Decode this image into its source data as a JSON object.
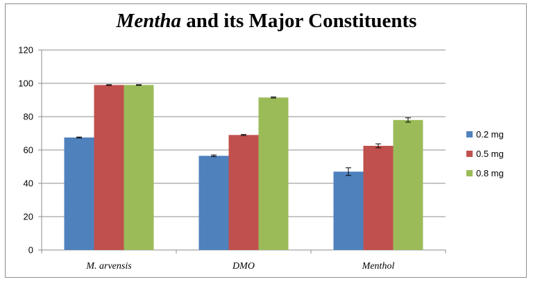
{
  "chart_data": {
    "type": "bar",
    "title_italic": "Mentha",
    "title_rest": " and its Major Constituents",
    "categories": [
      "M. arvensis",
      "DMO",
      "Menthol"
    ],
    "series": [
      {
        "name": "0.2 mg",
        "color": "#4f81bd",
        "values": [
          67.5,
          56.5,
          47
        ],
        "errors": [
          0.3,
          0.5,
          2.3
        ]
      },
      {
        "name": "0.5 mg",
        "color": "#c0504d",
        "values": [
          99,
          69,
          62.5
        ],
        "errors": [
          0.2,
          0.3,
          1.2
        ]
      },
      {
        "name": "0.8 mg",
        "color": "#9bbb59",
        "values": [
          99,
          91.5,
          78
        ],
        "errors": [
          0.2,
          0.3,
          1.3
        ]
      }
    ],
    "ylim": [
      0,
      120
    ],
    "yticks": [
      0,
      20,
      40,
      60,
      80,
      100,
      120
    ],
    "xlabel": "",
    "ylabel": "",
    "grid": true,
    "legend_position": "right"
  }
}
